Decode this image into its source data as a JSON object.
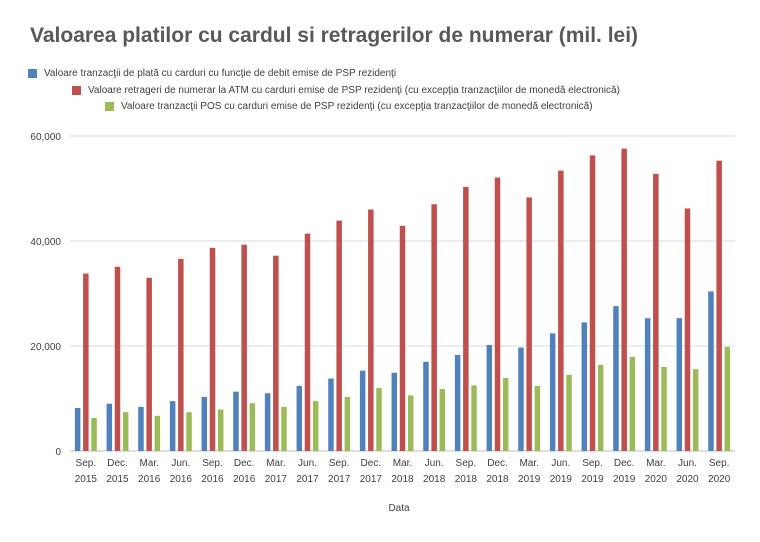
{
  "chart_data": {
    "type": "bar",
    "title": "Valoarea platilor cu cardul si retragerilor de numerar (mil. lei)",
    "xlabel": "Data",
    "ylabel": "",
    "ylim": [
      0,
      60000
    ],
    "yticks": [
      "0",
      "20,000",
      "40,000",
      "60,000"
    ],
    "grid": true,
    "legend_position": "top-left",
    "categories": [
      [
        "Sep.",
        "2015"
      ],
      [
        "Dec.",
        "2015"
      ],
      [
        "Mar.",
        "2016"
      ],
      [
        "Jun.",
        "2016"
      ],
      [
        "Sep.",
        "2016"
      ],
      [
        "Dec.",
        "2016"
      ],
      [
        "Mar.",
        "2017"
      ],
      [
        "Jun.",
        "2017"
      ],
      [
        "Sep.",
        "2017"
      ],
      [
        "Dec.",
        "2017"
      ],
      [
        "Mar.",
        "2018"
      ],
      [
        "Jun.",
        "2018"
      ],
      [
        "Sep.",
        "2018"
      ],
      [
        "Dec.",
        "2018"
      ],
      [
        "Mar.",
        "2019"
      ],
      [
        "Jun.",
        "2019"
      ],
      [
        "Sep.",
        "2019"
      ],
      [
        "Dec.",
        "2019"
      ],
      [
        "Mar.",
        "2020"
      ],
      [
        "Jun.",
        "2020"
      ],
      [
        "Sep.",
        "2020"
      ]
    ],
    "series": [
      {
        "name": "Valoare tranzacţii de plată cu carduri cu funcţie de debit emise de PSP rezidenţi",
        "color": "#4f81bd",
        "values": [
          8200,
          9000,
          8400,
          9500,
          10300,
          11300,
          11000,
          12400,
          13800,
          15300,
          14900,
          17000,
          18300,
          20200,
          19700,
          22400,
          24500,
          27600,
          25300,
          25300,
          30400
        ]
      },
      {
        "name": "Valoare  retrageri de numerar la ATM  cu carduri emise de PSP rezidenţi  (cu excepţia tranzacţiilor de monedă electronică)",
        "color": "#c0504d",
        "values": [
          33800,
          35100,
          33000,
          36600,
          38700,
          39300,
          37200,
          41400,
          43900,
          46000,
          42900,
          47000,
          50300,
          52100,
          48300,
          53400,
          56300,
          57600,
          52800,
          46200,
          55300
        ]
      },
      {
        "name": "Valoare tranzacţii POS cu carduri emise de PSP rezidenţi  (cu excepţia tranzacţiilor de   monedă  electronică)",
        "color": "#9bbb59",
        "values": [
          6300,
          7400,
          6700,
          7400,
          7900,
          9100,
          8400,
          9500,
          10300,
          12000,
          10600,
          11800,
          12500,
          13900,
          12400,
          14500,
          16400,
          17900,
          16000,
          15600,
          19800
        ]
      }
    ]
  }
}
